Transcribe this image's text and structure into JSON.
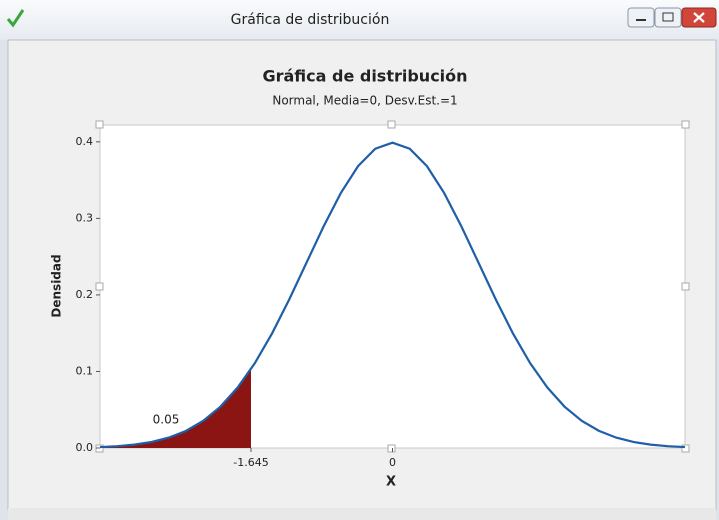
{
  "window": {
    "title": "Gráfica de distribución"
  },
  "chart_data": {
    "type": "line",
    "title": "Gráfica de distribución",
    "subtitle": "Normal, Media=0, Desv.Est.=1",
    "x_label": "X",
    "y_label": "Densidad",
    "x": [
      -3.4,
      -3.2,
      -3.0,
      -2.8,
      -2.6,
      -2.4,
      -2.2,
      -2.0,
      -1.8,
      -1.6,
      -1.4,
      -1.2,
      -1.0,
      -0.8,
      -0.6,
      -0.4,
      -0.2,
      0,
      0.2,
      0.4,
      0.6,
      0.8,
      1.0,
      1.2,
      1.4,
      1.6,
      1.8,
      2.0,
      2.2,
      2.4,
      2.6,
      2.8,
      3.0,
      3.2,
      3.4
    ],
    "values": [
      0.0012,
      0.0024,
      0.0044,
      0.0079,
      0.0136,
      0.0224,
      0.0355,
      0.054,
      0.079,
      0.1109,
      0.1497,
      0.1942,
      0.242,
      0.2897,
      0.3332,
      0.3683,
      0.391,
      0.3989,
      0.391,
      0.3683,
      0.3332,
      0.2897,
      0.242,
      0.1942,
      0.1497,
      0.1109,
      0.079,
      0.054,
      0.0355,
      0.0224,
      0.0136,
      0.0079,
      0.0044,
      0.0024,
      0.0012
    ],
    "color": "#1f5fa8",
    "shade": {
      "x": [
        -3.4,
        -3.2,
        -3.0,
        -2.8,
        -2.6,
        -2.4,
        -2.2,
        -2.0,
        -1.8,
        -1.645
      ],
      "values": [
        0.0012,
        0.0024,
        0.0044,
        0.0079,
        0.0136,
        0.0224,
        0.0355,
        0.054,
        0.079,
        0.1031
      ],
      "color": "#8b1512",
      "probability": 0.05
    },
    "xlim": [
      -3.4,
      3.4
    ],
    "ylim": [
      0,
      0.422
    ],
    "xticks": [
      -1.645,
      0
    ],
    "yticks": [
      {
        "value": 0,
        "label": "0.0"
      },
      0.1,
      0.2,
      0.3,
      0.4
    ]
  }
}
